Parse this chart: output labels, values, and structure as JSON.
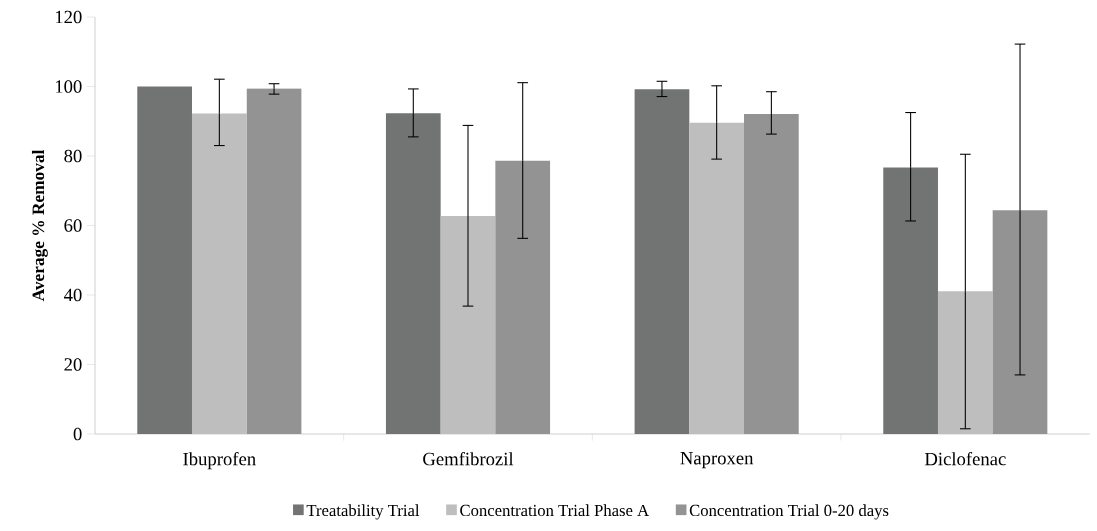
{
  "chart_data": {
    "type": "bar",
    "ylabel": "Average % Removal",
    "categories": [
      "Ibuprofen",
      "Gemfibrozil",
      "Naproxen",
      "Diclofenac"
    ],
    "series": [
      {
        "name": "Treatability Trial",
        "color": "#727473",
        "values": [
          100,
          92.3,
          99.2,
          76.7
        ],
        "errors": [
          null,
          [
            85.5,
            99.3
          ],
          [
            97.1,
            101.5
          ],
          [
            61.3,
            92.5
          ]
        ]
      },
      {
        "name": "Concentration Trial Phase A",
        "color": "#bebebe",
        "values": [
          92.2,
          62.7,
          89.6,
          41.1
        ],
        "errors": [
          [
            83.0,
            102.1
          ],
          [
            36.8,
            88.8
          ],
          [
            79.1,
            100.2
          ],
          [
            1.5,
            80.5
          ]
        ]
      },
      {
        "name": "Concentration Trial 0-20 days",
        "color": "#939393",
        "values": [
          99.4,
          78.6,
          92.1,
          64.4
        ],
        "errors": [
          [
            97.8,
            100.8
          ],
          [
            56.3,
            101.1
          ],
          [
            86.3,
            98.5
          ],
          [
            17.0,
            112.2
          ]
        ]
      }
    ],
    "ylim": [
      0,
      120
    ],
    "yticks": [
      0,
      20,
      40,
      60,
      80,
      100,
      120
    ],
    "grid": false,
    "legend": "bottom"
  }
}
